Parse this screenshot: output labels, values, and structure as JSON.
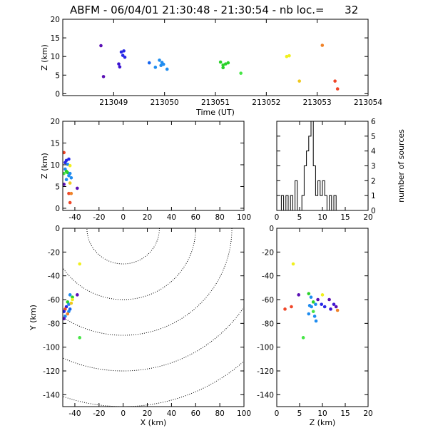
{
  "title": "ABFM - 06/04/01 21:30:48 - 21:30:54 - nb loc.=      32",
  "chart_data": [
    {
      "id": "time-height",
      "type": "scatter",
      "xlabel": "Time (UT)",
      "ylabel": "Z (km)",
      "xlim": [
        213048,
        213054
      ],
      "ylim": [
        -0.5,
        20
      ],
      "xticks": [
        213049,
        213050,
        213051,
        213052,
        213053,
        213054
      ],
      "xticklabels": [
        "213049",
        "213050",
        "213051",
        "213052",
        "213053",
        "213054"
      ],
      "yticks": [
        0,
        5,
        10,
        15,
        20
      ],
      "yticklabels": [
        "0",
        "5",
        "10",
        "15",
        "20"
      ],
      "points": [
        {
          "x": 213048.75,
          "y": 12.9,
          "color": "#5a0fb4"
        },
        {
          "x": 213048.8,
          "y": 4.6,
          "color": "#5a0fb4"
        },
        {
          "x": 213049.1,
          "y": 8.0,
          "color": "#3c14d2"
        },
        {
          "x": 213049.12,
          "y": 7.2,
          "color": "#3c14d2"
        },
        {
          "x": 213049.15,
          "y": 11.2,
          "color": "#2828e6"
        },
        {
          "x": 213049.2,
          "y": 11.5,
          "color": "#2828e6"
        },
        {
          "x": 213049.18,
          "y": 10.3,
          "color": "#2828e6"
        },
        {
          "x": 213049.22,
          "y": 9.8,
          "color": "#2828e6"
        },
        {
          "x": 213049.7,
          "y": 8.3,
          "color": "#1464f0"
        },
        {
          "x": 213049.82,
          "y": 7.1,
          "color": "#1e8cf0"
        },
        {
          "x": 213049.9,
          "y": 9.0,
          "color": "#1e8cf0"
        },
        {
          "x": 213049.93,
          "y": 7.6,
          "color": "#1e8cf0"
        },
        {
          "x": 213049.95,
          "y": 8.4,
          "color": "#1e8cf0"
        },
        {
          "x": 213049.98,
          "y": 7.9,
          "color": "#1e8cf0"
        },
        {
          "x": 213050.05,
          "y": 6.6,
          "color": "#1e8cf0"
        },
        {
          "x": 213051.1,
          "y": 8.5,
          "color": "#2ad22a"
        },
        {
          "x": 213051.15,
          "y": 7.7,
          "color": "#2ad22a"
        },
        {
          "x": 213051.2,
          "y": 8.0,
          "color": "#2ad22a"
        },
        {
          "x": 213051.25,
          "y": 8.3,
          "color": "#2ad22a"
        },
        {
          "x": 213051.15,
          "y": 7.0,
          "color": "#2ad22a"
        },
        {
          "x": 213051.5,
          "y": 5.5,
          "color": "#46e646"
        },
        {
          "x": 213052.4,
          "y": 10.0,
          "color": "#f0f01e"
        },
        {
          "x": 213052.45,
          "y": 10.2,
          "color": "#f0f01e"
        },
        {
          "x": 213052.65,
          "y": 3.4,
          "color": "#f0c81e"
        },
        {
          "x": 213053.1,
          "y": 13.0,
          "color": "#f08228"
        },
        {
          "x": 213053.35,
          "y": 3.4,
          "color": "#f04628"
        },
        {
          "x": 213053.4,
          "y": 1.3,
          "color": "#f04628"
        }
      ]
    },
    {
      "id": "x-height",
      "type": "scatter",
      "xlabel": "",
      "ylabel": "Z (km)",
      "xlim": [
        -50,
        100
      ],
      "ylim": [
        -0.5,
        20
      ],
      "xticks": [
        -40,
        -20,
        0,
        20,
        40,
        60,
        80,
        100
      ],
      "xticklabels": [
        "-40",
        "-20",
        "0",
        "20",
        "40",
        "60",
        "80",
        "100"
      ],
      "yticks": [
        0,
        5,
        10,
        15,
        20
      ],
      "yticklabels": [
        "0",
        "5",
        "10",
        "15",
        "20"
      ],
      "points": [
        {
          "x": -49,
          "y": 12.8,
          "color": "#f04628"
        },
        {
          "x": -47,
          "y": 11.0,
          "color": "#2828e6"
        },
        {
          "x": -45,
          "y": 11.3,
          "color": "#2828e6"
        },
        {
          "x": -48,
          "y": 10.5,
          "color": "#2828e6"
        },
        {
          "x": -46,
          "y": 10.1,
          "color": "#1e8cf0"
        },
        {
          "x": -44,
          "y": 9.8,
          "color": "#f0f01e"
        },
        {
          "x": -48,
          "y": 9.0,
          "color": "#1e8cf0"
        },
        {
          "x": -47,
          "y": 8.5,
          "color": "#2ad22a"
        },
        {
          "x": -49,
          "y": 8.0,
          "color": "#46e646"
        },
        {
          "x": -46,
          "y": 8.2,
          "color": "#2ad22a"
        },
        {
          "x": -45,
          "y": 7.5,
          "color": "#1e8cf0"
        },
        {
          "x": -44,
          "y": 8.0,
          "color": "#1e8cf0"
        },
        {
          "x": -43,
          "y": 7.0,
          "color": "#1e8cf0"
        },
        {
          "x": -47,
          "y": 6.6,
          "color": "#1e8cf0"
        },
        {
          "x": -49,
          "y": 5.5,
          "color": "#5a0fb4"
        },
        {
          "x": -44,
          "y": 5.8,
          "color": "#f0c81e"
        },
        {
          "x": -38,
          "y": 4.6,
          "color": "#5a0fb4"
        },
        {
          "x": -45,
          "y": 3.4,
          "color": "#f04628"
        },
        {
          "x": -43,
          "y": 3.4,
          "color": "#f08228"
        },
        {
          "x": -44,
          "y": 1.3,
          "color": "#f04628"
        }
      ]
    },
    {
      "id": "height-histogram",
      "type": "bar",
      "xlabel": "",
      "ylabel": "number of sources",
      "xlim": [
        0,
        20
      ],
      "ylim": [
        0,
        6
      ],
      "xticks": [
        0,
        5,
        10,
        15,
        20
      ],
      "xticklabels": [
        "0",
        "5",
        "10",
        "15",
        "20"
      ],
      "yticks": [
        0,
        1,
        2,
        3,
        4,
        5,
        6
      ],
      "yticklabels": [
        "0",
        "1",
        "2",
        "3",
        "4",
        "5",
        "6"
      ],
      "bin_edges": [
        0,
        1,
        1.5,
        2,
        2.5,
        3,
        3.5,
        4,
        4.5,
        5,
        5.5,
        6,
        6.5,
        7,
        7.5,
        8,
        8.5,
        9,
        9.5,
        10,
        10.5,
        11,
        11.5,
        12,
        12.5,
        13,
        13.5,
        20
      ],
      "values": [
        0,
        1,
        0,
        1,
        0,
        1,
        0,
        2,
        0,
        0,
        1,
        3,
        4,
        5,
        6,
        3,
        1,
        2,
        1,
        2,
        1,
        0,
        1,
        0,
        1,
        0,
        0
      ]
    },
    {
      "id": "plan-view",
      "type": "scatter",
      "xlabel": "X (km)",
      "ylabel": "Y (km)",
      "xlim": [
        -50,
        100
      ],
      "ylim": [
        -150,
        0
      ],
      "xticks": [
        -40,
        -20,
        0,
        20,
        40,
        60,
        80,
        100
      ],
      "xticklabels": [
        "-40",
        "-20",
        "0",
        "20",
        "40",
        "60",
        "80",
        "100"
      ],
      "yticks": [
        0,
        -20,
        -40,
        -60,
        -80,
        -100,
        -120,
        -140
      ],
      "yticklabels": [
        "0",
        "-20",
        "-40",
        "-60",
        "-80",
        "-100",
        "-120",
        "-140"
      ],
      "range_rings_km": [
        30,
        60,
        90,
        120,
        150
      ],
      "ring_center": [
        0,
        0
      ],
      "points": [
        {
          "x": -36,
          "y": -30,
          "color": "#f0f01e"
        },
        {
          "x": -36,
          "y": -92,
          "color": "#46e646"
        },
        {
          "x": -42,
          "y": -58,
          "color": "#2ad22a"
        },
        {
          "x": -44,
          "y": -56,
          "color": "#1e8cf0"
        },
        {
          "x": -46,
          "y": -62,
          "color": "#2ad22a"
        },
        {
          "x": -38,
          "y": -56,
          "color": "#5a0fb4"
        },
        {
          "x": -42,
          "y": -60,
          "color": "#f0f01e"
        },
        {
          "x": -45,
          "y": -64,
          "color": "#1e8cf0"
        },
        {
          "x": -47,
          "y": -66,
          "color": "#2828e6"
        },
        {
          "x": -44,
          "y": -68,
          "color": "#1464f0"
        },
        {
          "x": -48,
          "y": -68,
          "color": "#f04628"
        },
        {
          "x": -45,
          "y": -70,
          "color": "#1e8cf0"
        },
        {
          "x": -49,
          "y": -70,
          "color": "#2828e6"
        },
        {
          "x": -46,
          "y": -72,
          "color": "#f08228"
        },
        {
          "x": -48,
          "y": -74,
          "color": "#1e8cf0"
        },
        {
          "x": -43,
          "y": -63,
          "color": "#f0c81e"
        },
        {
          "x": -49,
          "y": -76,
          "color": "#5a0fb4"
        }
      ]
    },
    {
      "id": "z-y-view",
      "type": "scatter",
      "xlabel": "Z (km)",
      "ylabel": "",
      "xlim": [
        0,
        20
      ],
      "ylim": [
        -150,
        0
      ],
      "xticks": [
        0,
        5,
        10,
        15,
        20
      ],
      "xticklabels": [
        "0",
        "5",
        "10",
        "15",
        "20"
      ],
      "yticks": [
        0,
        -20,
        -40,
        -60,
        -80,
        -100,
        -120,
        -140
      ],
      "yticklabels": [
        "0",
        "-20",
        "-40",
        "-60",
        "-80",
        "-100",
        "-120",
        "-140"
      ],
      "points": [
        {
          "x": 3.6,
          "y": -30,
          "color": "#f0f01e"
        },
        {
          "x": 5.8,
          "y": -92,
          "color": "#46e646"
        },
        {
          "x": 4.8,
          "y": -56,
          "color": "#5a0fb4"
        },
        {
          "x": 7.0,
          "y": -55,
          "color": "#2ad22a"
        },
        {
          "x": 10.0,
          "y": -56,
          "color": "#f0f01e"
        },
        {
          "x": 11.5,
          "y": -60,
          "color": "#5a0fb4"
        },
        {
          "x": 7.5,
          "y": -58,
          "color": "#1e8cf0"
        },
        {
          "x": 8.0,
          "y": -62,
          "color": "#2ad22a"
        },
        {
          "x": 9.0,
          "y": -60,
          "color": "#5a0fb4"
        },
        {
          "x": 7.2,
          "y": -65,
          "color": "#1e8cf0"
        },
        {
          "x": 8.5,
          "y": -64,
          "color": "#1e8cf0"
        },
        {
          "x": 7.6,
          "y": -66,
          "color": "#1e8cf0"
        },
        {
          "x": 9.8,
          "y": -64,
          "color": "#2828e6"
        },
        {
          "x": 10.5,
          "y": -66,
          "color": "#2828e6"
        },
        {
          "x": 11.8,
          "y": -68,
          "color": "#3c14d2"
        },
        {
          "x": 13.0,
          "y": -66,
          "color": "#5a0fb4"
        },
        {
          "x": 1.8,
          "y": -68,
          "color": "#f04628"
        },
        {
          "x": 3.2,
          "y": -66,
          "color": "#f04628"
        },
        {
          "x": 13.3,
          "y": -69,
          "color": "#f08228"
        },
        {
          "x": 8.0,
          "y": -70,
          "color": "#46e646"
        },
        {
          "x": 7.0,
          "y": -72,
          "color": "#1e8cf0"
        },
        {
          "x": 8.3,
          "y": -74,
          "color": "#1e8cf0"
        },
        {
          "x": 8.6,
          "y": -78,
          "color": "#1e8cf0"
        },
        {
          "x": 12.5,
          "y": -64,
          "color": "#3c14d2"
        }
      ]
    }
  ]
}
